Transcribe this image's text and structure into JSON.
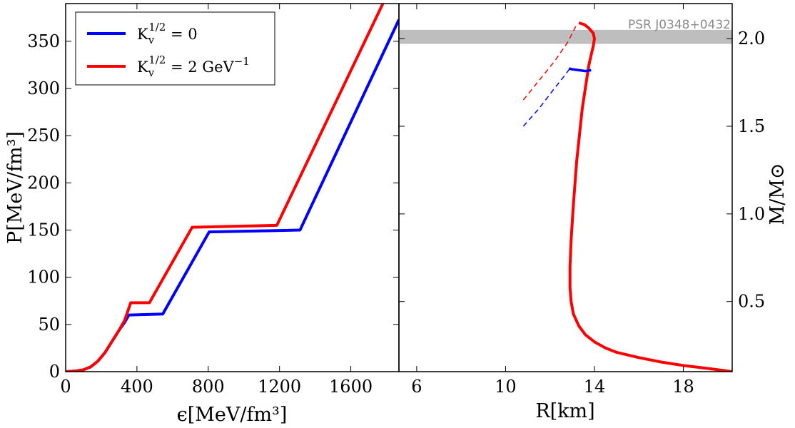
{
  "chart_data": [
    {
      "type": "line",
      "xlabel": "ϵ[MeV/fm³]",
      "ylabel": "P[MeV/fm³]",
      "xlim": [
        0,
        1870
      ],
      "ylim": [
        0,
        390
      ],
      "xticks": [
        0,
        400,
        800,
        1200,
        1600
      ],
      "xtick_labels": [
        "0",
        "400",
        "800",
        "1200",
        "1600"
      ],
      "yticks": [
        0,
        50,
        100,
        150,
        200,
        250,
        300,
        350
      ],
      "ytick_labels": [
        "0",
        "50",
        "100",
        "150",
        "200",
        "250",
        "300",
        "350"
      ],
      "legend": {
        "placement": "top-left",
        "entries": [
          {
            "base": "K",
            "sub": "v",
            "sup": "1/2",
            "rest": " = 0",
            "color": "#0000ff"
          },
          {
            "base": "K",
            "sub": "v",
            "sup": "1/2",
            "rest": " = 2 GeV",
            "rest_sup": "−1",
            "color": "#ff0000"
          }
        ]
      },
      "series": [
        {
          "color": "#0000ff",
          "x": [
            0,
            60,
            100,
            140,
            180,
            220,
            260,
            300,
            330,
            355,
            545,
            805,
            1315,
            1870
          ],
          "y": [
            0,
            0.8,
            2,
            5,
            11,
            20,
            32,
            44,
            52,
            60,
            61,
            148,
            150,
            373
          ]
        },
        {
          "color": "#ff0000",
          "x": [
            0,
            60,
            100,
            140,
            180,
            220,
            260,
            300,
            330,
            345,
            365,
            470,
            710,
            1185,
            1780
          ],
          "y": [
            0,
            0.8,
            2,
            5,
            11,
            20,
            32,
            44,
            54,
            62,
            73,
            73,
            153,
            155,
            390
          ]
        }
      ]
    },
    {
      "type": "line",
      "xlabel": "R[km]",
      "ylabel": "M/M⊙",
      "xlim": [
        5.2,
        20.2
      ],
      "ylim": [
        0.1,
        2.2
      ],
      "xticks": [
        6,
        10,
        14,
        18
      ],
      "xtick_labels": [
        "6",
        "10",
        "14",
        "18"
      ],
      "yticks": [
        0.5,
        1.0,
        1.5,
        2.0
      ],
      "ytick_labels": [
        "0.5",
        "1.0",
        "1.5",
        "2.0"
      ],
      "band": {
        "label": "PSR J0348+0432",
        "y_low": 1.97,
        "y_high": 2.05,
        "color": "#bebebe"
      },
      "series": [
        {
          "color": "#ff0000",
          "style": "solid",
          "x": [
            20.2,
            19,
            18,
            17,
            16,
            15,
            14.5,
            14,
            13.6,
            13.3,
            13.05,
            12.95,
            12.9,
            12.9,
            12.95,
            13.05,
            13.2,
            13.45,
            13.75,
            13.95,
            14.0,
            13.95,
            13.75,
            13.55,
            13.3
          ],
          "y": [
            0.1,
            0.12,
            0.135,
            0.155,
            0.18,
            0.21,
            0.235,
            0.27,
            0.31,
            0.36,
            0.43,
            0.5,
            0.58,
            0.7,
            0.85,
            1.05,
            1.3,
            1.6,
            1.85,
            1.96,
            2.0,
            2.03,
            2.06,
            2.08,
            2.09
          ]
        },
        {
          "color": "#0000ff",
          "style": "solid",
          "x": [
            12.85,
            13.0,
            13.3,
            13.6,
            13.85
          ],
          "y": [
            1.83,
            1.825,
            1.82,
            1.815,
            1.82
          ]
        },
        {
          "color": "#ff0000",
          "style": "dashed",
          "x": [
            10.8,
            11.5,
            12.2,
            12.8,
            13.2
          ],
          "y": [
            1.65,
            1.76,
            1.87,
            1.98,
            2.08
          ]
        },
        {
          "color": "#0000ff",
          "style": "dashed",
          "x": [
            10.8,
            11.5,
            12.1,
            12.6,
            12.9
          ],
          "y": [
            1.5,
            1.6,
            1.7,
            1.78,
            1.83
          ]
        }
      ]
    }
  ]
}
